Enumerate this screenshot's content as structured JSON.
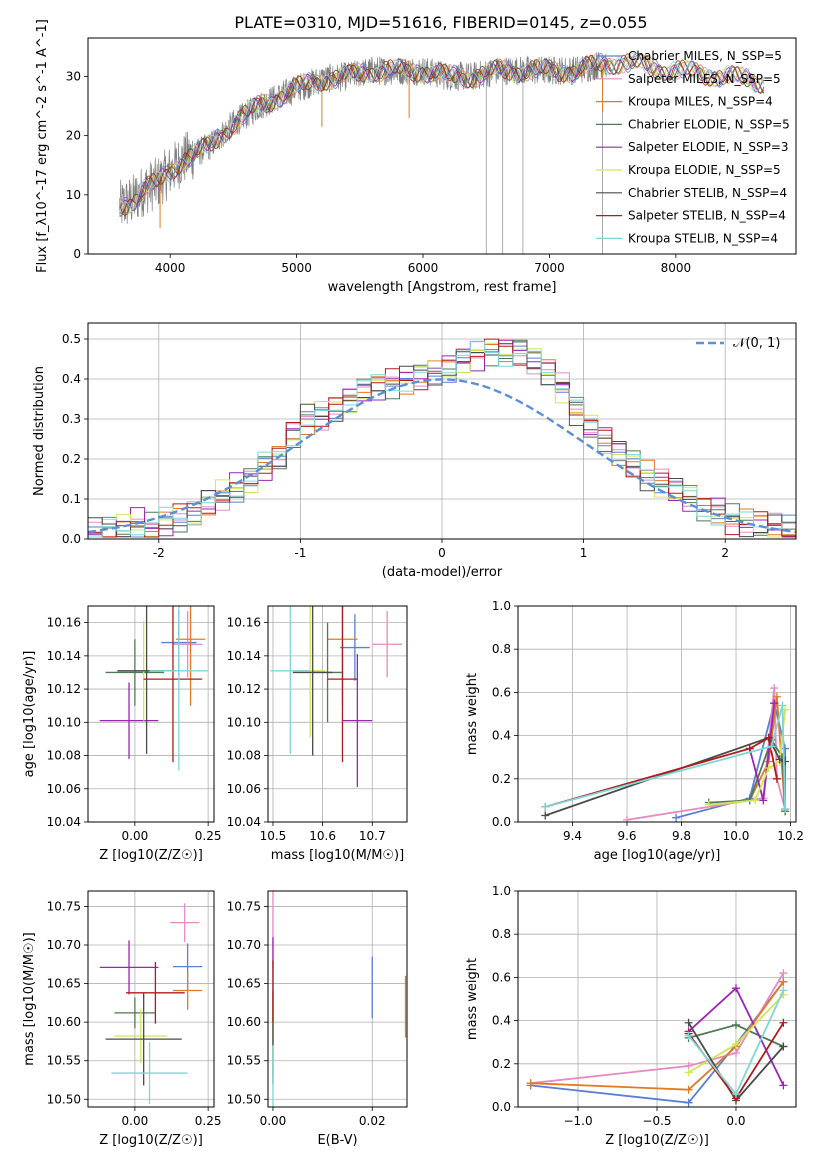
{
  "figure_title": "PLATE=0310, MJD=51616, FIBERID=0145, z=0.055",
  "chart_data": [
    {
      "id": "spectrum",
      "type": "line",
      "xlabel": "wavelength [Angstrom, rest frame]",
      "ylabel": "Flux [f_λ10^-17 erg cm^-2 s^-1 A^-1]",
      "xlim": [
        3350,
        8950
      ],
      "ylim": [
        0,
        36.5
      ],
      "xticks": [
        4000,
        5000,
        6000,
        7000,
        8000
      ],
      "yticks": [
        0,
        10,
        20,
        30
      ],
      "grid": false,
      "legend_position": "lower-right",
      "data_line_color": "#808080",
      "spectrum_anchor_points": {
        "x": [
          3600,
          3700,
          3800,
          3900,
          4000,
          4100,
          4300,
          4500,
          4700,
          4900,
          5000,
          5200,
          5400,
          5600,
          5800,
          6000,
          6200,
          6400,
          6600,
          6800,
          7000,
          7200,
          7400,
          7600,
          7800,
          8000,
          8200,
          8400,
          8700
        ],
        "y": [
          8,
          9,
          11,
          12,
          14,
          16,
          18,
          22,
          25,
          27,
          28,
          29.5,
          30,
          31,
          31,
          31,
          30,
          30,
          31,
          31,
          31,
          31,
          32,
          32.5,
          31.5,
          31,
          30.5,
          30,
          29
        ]
      },
      "series": [
        {
          "name": "Chabrier MILES, N_SSP=5",
          "color": "#5b7fd4"
        },
        {
          "name": "Salpeter MILES, N_SSP=5",
          "color": "#e58ac3"
        },
        {
          "name": "Kroupa MILES, N_SSP=4",
          "color": "#e07b23"
        },
        {
          "name": "Chabrier ELODIE, N_SSP=5",
          "color": "#4f7a52"
        },
        {
          "name": "Salpeter ELODIE, N_SSP=3",
          "color": "#9b25b3"
        },
        {
          "name": "Kroupa ELODIE, N_SSP=5",
          "color": "#cfe65c"
        },
        {
          "name": "Chabrier STELIB, N_SSP=4",
          "color": "#4a4a4a"
        },
        {
          "name": "Salpeter STELIB, N_SSP=4",
          "color": "#b01b1b"
        },
        {
          "name": "Kroupa STELIB, N_SSP=4",
          "color": "#7fd6d6"
        }
      ]
    },
    {
      "id": "residuals",
      "type": "line",
      "xlabel": "(data-model)/error",
      "ylabel": "Normed distribution",
      "xlim": [
        -2.5,
        2.5
      ],
      "ylim": [
        0,
        0.54
      ],
      "xticks": [
        -2,
        -1,
        0,
        1,
        2
      ],
      "yticks": [
        0.0,
        0.1,
        0.2,
        0.3,
        0.4,
        0.5
      ],
      "grid": true,
      "legend_position": "top-right",
      "gaussian": {
        "name": "𝒩(0, 1)",
        "color": "#5b8fd9",
        "mean": 0,
        "sigma": 1
      },
      "histogram_bin_edges_start": -2.5,
      "histogram_bin_width": 0.1,
      "histogram_values": [
        0.015,
        0.02,
        0.03,
        0.04,
        0.03,
        0.04,
        0.05,
        0.06,
        0.09,
        0.11,
        0.13,
        0.15,
        0.18,
        0.2,
        0.26,
        0.3,
        0.31,
        0.33,
        0.35,
        0.37,
        0.38,
        0.39,
        0.4,
        0.41,
        0.42,
        0.43,
        0.45,
        0.46,
        0.47,
        0.47,
        0.47,
        0.45,
        0.42,
        0.38,
        0.32,
        0.28,
        0.25,
        0.22,
        0.19,
        0.16,
        0.14,
        0.12,
        0.1,
        0.08,
        0.07,
        0.05,
        0.04,
        0.035,
        0.03,
        0.02
      ]
    },
    {
      "id": "age-vs-Z",
      "type": "scatter",
      "xlabel": "Z [log10(Z/Z☉)]",
      "ylabel": "age  [log10(age/yr)]",
      "xlim": [
        -0.16,
        0.27
      ],
      "ylim": [
        10.04,
        10.17
      ],
      "xticks": [
        0.0,
        0.25
      ],
      "xtick_labels": [
        "0.00",
        "0.25"
      ],
      "yticks": [
        10.04,
        10.06,
        10.08,
        10.1,
        10.12,
        10.14,
        10.16
      ],
      "yticks_labels": [
        "10.04",
        "10.06",
        "10.08",
        "10.10",
        "10.12",
        "10.14",
        "10.16"
      ],
      "grid": true,
      "points": [
        {
          "x": 0.15,
          "y": 10.148,
          "xerr": 0.06,
          "yerr": 0.02,
          "color": "#5b7fd4"
        },
        {
          "x": 0.18,
          "y": 10.147,
          "xerr": 0.05,
          "yerr": 0.02,
          "color": "#e58ac3"
        },
        {
          "x": 0.19,
          "y": 10.15,
          "xerr": 0.05,
          "yerr": 0.04,
          "color": "#e07b23"
        },
        {
          "x": 0.0,
          "y": 10.13,
          "xerr": 0.1,
          "yerr": 0.02,
          "color": "#4f7a52"
        },
        {
          "x": -0.02,
          "y": 10.101,
          "xerr": 0.1,
          "yerr": 0.023,
          "color": "#9b25b3"
        },
        {
          "x": 0.03,
          "y": 10.131,
          "xerr": 0.04,
          "yerr": 0.03,
          "color": "#cfe65c"
        },
        {
          "x": 0.04,
          "y": 10.131,
          "xerr": 0.1,
          "yerr": 0.05,
          "color": "#4a4a4a"
        },
        {
          "x": 0.13,
          "y": 10.126,
          "xerr": 0.1,
          "yerr": 0.05,
          "color": "#b01b1b"
        },
        {
          "x": 0.15,
          "y": 10.131,
          "xerr": 0.1,
          "yerr": 0.06,
          "color": "#7fd6d6"
        }
      ]
    },
    {
      "id": "age-vs-mass",
      "type": "scatter",
      "xlabel": "mass [log10(M/M☉)]",
      "ylabel": "",
      "xlim": [
        10.49,
        10.77
      ],
      "ylim": [
        10.04,
        10.17
      ],
      "xticks": [
        10.5,
        10.6,
        10.7
      ],
      "yticks": [
        10.04,
        10.06,
        10.08,
        10.1,
        10.12,
        10.14,
        10.16
      ],
      "yticks_labels": [
        "10.04",
        "10.06",
        "10.08",
        "10.10",
        "10.12",
        "10.14",
        "10.16"
      ],
      "grid": true,
      "points": [
        {
          "x": 10.665,
          "y": 10.145,
          "xerr": 0.03,
          "yerr": 0.02,
          "color": "#5b7fd4"
        },
        {
          "x": 10.73,
          "y": 10.147,
          "xerr": 0.03,
          "yerr": 0.02,
          "color": "#e58ac3"
        },
        {
          "x": 10.64,
          "y": 10.15,
          "xerr": 0.03,
          "yerr": 0.04,
          "color": "#e07b23"
        },
        {
          "x": 10.61,
          "y": 10.13,
          "xerr": 0.03,
          "yerr": 0.03,
          "color": "#4f7a52"
        },
        {
          "x": 10.67,
          "y": 10.101,
          "xerr": 0.03,
          "yerr": 0.04,
          "color": "#9b25b3"
        },
        {
          "x": 10.575,
          "y": 10.131,
          "xerr": 0.03,
          "yerr": 0.04,
          "color": "#cfe65c"
        },
        {
          "x": 10.58,
          "y": 10.13,
          "xerr": 0.04,
          "yerr": 0.05,
          "color": "#4a4a4a"
        },
        {
          "x": 10.64,
          "y": 10.126,
          "xerr": 0.03,
          "yerr": 0.05,
          "color": "#b01b1b"
        },
        {
          "x": 10.535,
          "y": 10.131,
          "xerr": 0.04,
          "yerr": 0.05,
          "color": "#7fd6d6"
        }
      ]
    },
    {
      "id": "mass-weight-vs-age",
      "type": "line",
      "xlabel": "age  [log10(age/yr)]",
      "ylabel": "mass weight",
      "xlim": [
        9.2,
        10.22
      ],
      "ylim": [
        0,
        1.0
      ],
      "xticks": [
        9.4,
        9.6,
        9.8,
        10.0,
        10.2
      ],
      "xtick_labels": [
        "9.4",
        "9.6",
        "9.8",
        "10.0",
        "10.2"
      ],
      "yticks": [
        0.0,
        0.2,
        0.4,
        0.6,
        0.8,
        1.0
      ],
      "grid": true,
      "series": [
        {
          "color": "#5b7fd4",
          "x": [
            9.78,
            10.05,
            10.14,
            10.18,
            10.18
          ],
          "y": [
            0.02,
            0.11,
            0.55,
            0.34,
            0.06
          ]
        },
        {
          "color": "#e58ac3",
          "x": [
            9.6,
            10.1,
            10.14,
            10.15,
            10.18
          ],
          "y": [
            0.01,
            0.11,
            0.62,
            0.2,
            0.06
          ]
        },
        {
          "color": "#e07b23",
          "x": [
            10.05,
            10.12,
            10.15,
            10.18
          ],
          "y": [
            0.1,
            0.28,
            0.58,
            0.05
          ]
        },
        {
          "color": "#4f7a52",
          "x": [
            9.9,
            10.05,
            10.13,
            10.17,
            10.18
          ],
          "y": [
            0.09,
            0.1,
            0.38,
            0.3,
            0.05
          ]
        },
        {
          "color": "#9b25b3",
          "x": [
            10.05,
            10.1,
            10.14
          ],
          "y": [
            0.34,
            0.1,
            0.55
          ]
        },
        {
          "color": "#cfe65c",
          "x": [
            9.9,
            10.07,
            10.12,
            10.16,
            10.18
          ],
          "y": [
            0.08,
            0.1,
            0.25,
            0.28,
            0.52
          ]
        },
        {
          "color": "#4a4a4a",
          "x": [
            9.3,
            10.12,
            10.16,
            10.18
          ],
          "y": [
            0.03,
            0.39,
            0.29,
            0.28
          ]
        },
        {
          "color": "#b01b1b",
          "x": [
            9.3,
            10.05,
            10.12,
            10.15
          ],
          "y": [
            0.07,
            0.34,
            0.39,
            0.2
          ]
        },
        {
          "color": "#7fd6d6",
          "x": [
            9.3,
            10.13,
            10.17,
            10.18
          ],
          "y": [
            0.07,
            0.35,
            0.54,
            0.06
          ]
        }
      ]
    },
    {
      "id": "mass-vs-Z",
      "type": "scatter",
      "xlabel": "Z [log10(Z/Z☉)]",
      "ylabel": "mass [log10(M/M☉)]",
      "xlim": [
        -0.16,
        0.27
      ],
      "ylim": [
        10.49,
        10.77
      ],
      "xticks": [
        0.0,
        0.25
      ],
      "xtick_labels": [
        "0.00",
        "0.25"
      ],
      "yticks": [
        10.5,
        10.55,
        10.6,
        10.65,
        10.7,
        10.75
      ],
      "yticks_labels": [
        "10.50",
        "10.55",
        "10.60",
        "10.65",
        "10.70",
        "10.75"
      ],
      "grid": true,
      "points": [
        {
          "x": 0.18,
          "y": 10.672,
          "xerr": 0.05,
          "yerr": 0.03,
          "color": "#5b7fd4"
        },
        {
          "x": 0.17,
          "y": 10.729,
          "xerr": 0.05,
          "yerr": 0.025,
          "color": "#e58ac3"
        },
        {
          "x": 0.18,
          "y": 10.641,
          "xerr": 0.05,
          "yerr": 0.025,
          "color": "#e07b23"
        },
        {
          "x": 0.0,
          "y": 10.612,
          "xerr": 0.07,
          "yerr": 0.02,
          "color": "#4f7a52"
        },
        {
          "x": -0.02,
          "y": 10.671,
          "xerr": 0.1,
          "yerr": 0.035,
          "color": "#9b25b3"
        },
        {
          "x": 0.02,
          "y": 10.582,
          "xerr": 0.09,
          "yerr": 0.035,
          "color": "#cfe65c"
        },
        {
          "x": 0.03,
          "y": 10.578,
          "xerr": 0.13,
          "yerr": 0.06,
          "color": "#4a4a4a"
        },
        {
          "x": 0.07,
          "y": 10.638,
          "xerr": 0.1,
          "yerr": 0.04,
          "color": "#b01b1b"
        },
        {
          "x": 0.05,
          "y": 10.534,
          "xerr": 0.13,
          "yerr": 0.04,
          "color": "#7fd6d6"
        }
      ]
    },
    {
      "id": "mass-vs-EBV",
      "type": "scatter",
      "xlabel": "E(B-V)",
      "ylabel": "",
      "xlim": [
        -0.001,
        0.027
      ],
      "ylim": [
        10.49,
        10.77
      ],
      "xticks": [
        0.0,
        0.02
      ],
      "xtick_labels": [
        "0.00",
        "0.02"
      ],
      "yticks": [
        10.5,
        10.55,
        10.6,
        10.65,
        10.7,
        10.75
      ],
      "yticks_labels": [
        "10.50",
        "10.55",
        "10.60",
        "10.65",
        "10.70",
        "10.75"
      ],
      "grid": true,
      "points": [
        {
          "x": 0.02,
          "y": 10.645,
          "xerr": 0,
          "yerr": 0.04,
          "color": "#5b7fd4"
        },
        {
          "x": 0.0,
          "y": 10.72,
          "xerr": 0,
          "yerr": 0.05,
          "color": "#e58ac3"
        },
        {
          "x": 0.0267,
          "y": 10.62,
          "xerr": 0,
          "yerr": 0.04,
          "color": "#e07b23"
        },
        {
          "x": 0.0,
          "y": 10.6,
          "xerr": 0,
          "yerr": 0.03,
          "color": "#4f7a52"
        },
        {
          "x": 0.0,
          "y": 10.67,
          "xerr": 0,
          "yerr": 0.04,
          "color": "#9b25b3"
        },
        {
          "x": 0.0,
          "y": 10.58,
          "xerr": 0,
          "yerr": 0.05,
          "color": "#cfe65c"
        },
        {
          "x": 0.0,
          "y": 10.58,
          "xerr": 0,
          "yerr": 0.06,
          "color": "#4a4a4a"
        },
        {
          "x": 0.0,
          "y": 10.64,
          "xerr": 0,
          "yerr": 0.04,
          "color": "#b01b1b"
        },
        {
          "x": 0.0,
          "y": 10.53,
          "xerr": 0,
          "yerr": 0.04,
          "color": "#7fd6d6"
        }
      ]
    },
    {
      "id": "mass-weight-vs-Z",
      "type": "line",
      "xlabel": "Z [log10(Z/Z☉)]",
      "ylabel": "mass weight",
      "xlim": [
        -1.38,
        0.38
      ],
      "ylim": [
        0,
        1.0
      ],
      "xticks": [
        -1.0,
        -0.5,
        0.0
      ],
      "xtick_labels": [
        "−1.0",
        "−0.5",
        "0.0"
      ],
      "yticks": [
        0.0,
        0.2,
        0.4,
        0.6,
        0.8,
        1.0
      ],
      "grid": true,
      "series": [
        {
          "color": "#5b7fd4",
          "x": [
            -1.3,
            -0.3,
            0.0,
            0.3
          ],
          "y": [
            0.1,
            0.02,
            0.29,
            0.58
          ]
        },
        {
          "color": "#e58ac3",
          "x": [
            -1.3,
            -0.3,
            0.0,
            0.3
          ],
          "y": [
            0.11,
            0.19,
            0.25,
            0.62
          ]
        },
        {
          "color": "#e07b23",
          "x": [
            -1.3,
            -0.3,
            0.0,
            0.3
          ],
          "y": [
            0.11,
            0.08,
            0.28,
            0.58
          ]
        },
        {
          "color": "#4f7a52",
          "x": [
            -0.3,
            0.0,
            0.3
          ],
          "y": [
            0.32,
            0.38,
            0.28
          ]
        },
        {
          "color": "#9b25b3",
          "x": [
            -0.3,
            0.0,
            0.3
          ],
          "y": [
            0.35,
            0.55,
            0.1
          ]
        },
        {
          "color": "#cfe65c",
          "x": [
            -0.3,
            0.0,
            0.3
          ],
          "y": [
            0.16,
            0.29,
            0.52
          ]
        },
        {
          "color": "#4a4a4a",
          "x": [
            -0.3,
            0.0,
            0.3
          ],
          "y": [
            0.39,
            0.03,
            0.28
          ]
        },
        {
          "color": "#b01b1b",
          "x": [
            -0.3,
            0.0,
            0.3
          ],
          "y": [
            0.34,
            0.04,
            0.39
          ]
        },
        {
          "color": "#7fd6d6",
          "x": [
            -0.3,
            0.0,
            0.3
          ],
          "y": [
            0.33,
            0.06,
            0.54
          ]
        }
      ]
    }
  ]
}
